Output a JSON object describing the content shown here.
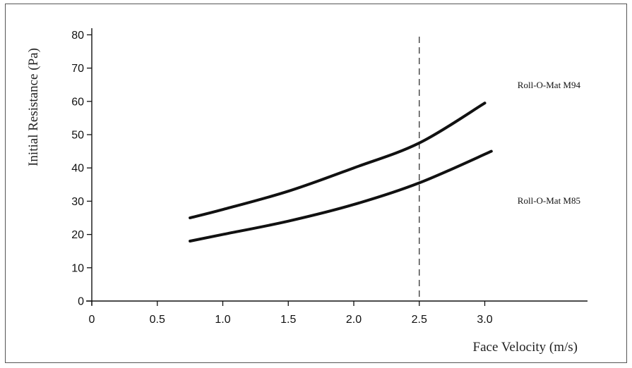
{
  "chart_data": {
    "type": "line",
    "xlabel": "Face Velocity (m/s)",
    "ylabel": "Initial Resistance (Pa)",
    "xlim": [
      0,
      3.2
    ],
    "ylim": [
      0,
      80
    ],
    "x_ticks": [
      "0",
      "0.5",
      "1.0",
      "1.5",
      "2.0",
      "2.5",
      "3.0"
    ],
    "x_tick_values": [
      0,
      0.5,
      1.0,
      1.5,
      2.0,
      2.5,
      3.0
    ],
    "y_ticks": [
      "0",
      "10",
      "20",
      "30",
      "40",
      "50",
      "60",
      "70",
      "80"
    ],
    "y_tick_values": [
      0,
      10,
      20,
      30,
      40,
      50,
      60,
      70,
      80
    ],
    "grid": false,
    "reference_line": {
      "x": 2.5,
      "style": "dashed"
    },
    "series": [
      {
        "name": "Roll-O-Mat M94",
        "x": [
          0.75,
          1.0,
          1.5,
          2.0,
          2.5,
          3.0
        ],
        "y": [
          25,
          27.5,
          33,
          40,
          47.5,
          59.5
        ]
      },
      {
        "name": "Roll-O-Mat M85",
        "x": [
          0.75,
          1.0,
          1.5,
          2.0,
          2.5,
          3.05
        ],
        "y": [
          18,
          20,
          24,
          29,
          35.5,
          45
        ]
      }
    ]
  }
}
